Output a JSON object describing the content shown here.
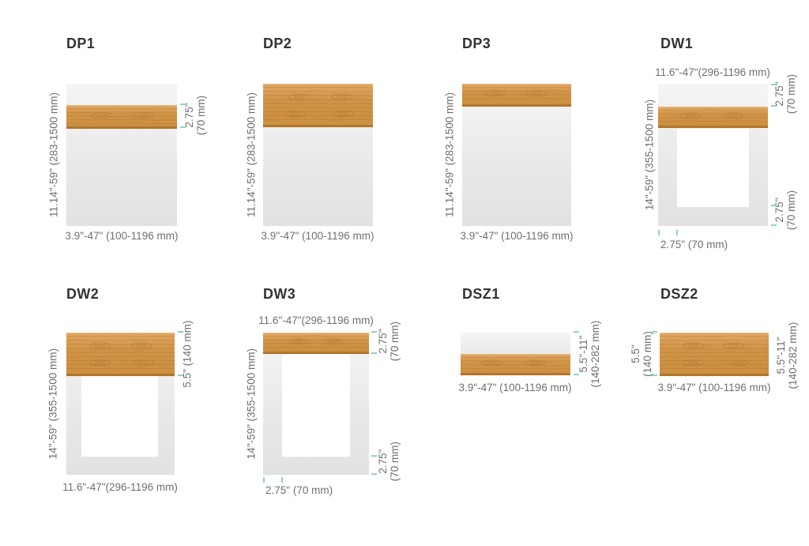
{
  "colors": {
    "background": "#ffffff",
    "wood_base": "#d2974c",
    "wood_grain": "#a8712a",
    "wood_edge_dark": "#b0762c",
    "panel_gray": "#e9e9e9",
    "inner_white": "#ffffff",
    "tick_teal": "#8fd3c3",
    "label_gray": "#6f6f6f",
    "title_dark": "#333333"
  },
  "panels": [
    {
      "title": "DP1",
      "side_label": "11.14\"-59\" (283-1500 mm)",
      "bottom_label": "3.9\"-47\" (100-1196 mm)",
      "strip_dim_line1": "2.75\"",
      "strip_dim_line2": "(70 mm)"
    },
    {
      "title": "DP2",
      "side_label": "11.14\"-59\" (283-1500 mm)",
      "bottom_label": "3.9\"-47\" (100-1196 mm)"
    },
    {
      "title": "DP3",
      "side_label": "11.14\"-59\" (283-1500 mm)",
      "bottom_label": "3.9\"-47\" (100-1196 mm)"
    },
    {
      "title": "DW1",
      "top_label": "11.6\"-47\"(296-1196 mm)",
      "side_label": "14\"-59\" (355-1500 mm)",
      "right_top_line1": "2.75\"",
      "right_top_line2": "(70 mm)",
      "right_bottom_line1": "2.75\"",
      "right_bottom_line2": "(70 mm)",
      "bottom_label": "2.75\" (70 mm)"
    },
    {
      "title": "DW2",
      "side_label": "14\"-59\" (355-1500 mm)",
      "right_label": "5.5\" (140 mm)",
      "bottom_label": "11.6\"-47\"(296-1196 mm)"
    },
    {
      "title": "DW3",
      "top_label": "11.6\"-47\"(296-1196 mm)",
      "side_label": "14\"-59\" (355-1500 mm)",
      "right_top_line1": "2.75\"",
      "right_top_line2": "(70 mm)",
      "right_bottom_line1": "2.75\"",
      "right_bottom_line2": "(70 mm)",
      "bottom_label": "2.75\" (70 mm)"
    },
    {
      "title": "DSZ1",
      "right_line1": "5.5\"-11\"",
      "right_line2": "(140-282 mm)",
      "bottom_label": "3.9\"-47\" (100-1196 mm)"
    },
    {
      "title": "DSZ2",
      "left_line1": "5.5\"",
      "left_line2": "(140 mm)",
      "right_line1": "5.5\"-11\"",
      "right_line2": "(140-282 mm)",
      "bottom_label": "3.9\"-47\" (100-1196 mm)"
    }
  ]
}
